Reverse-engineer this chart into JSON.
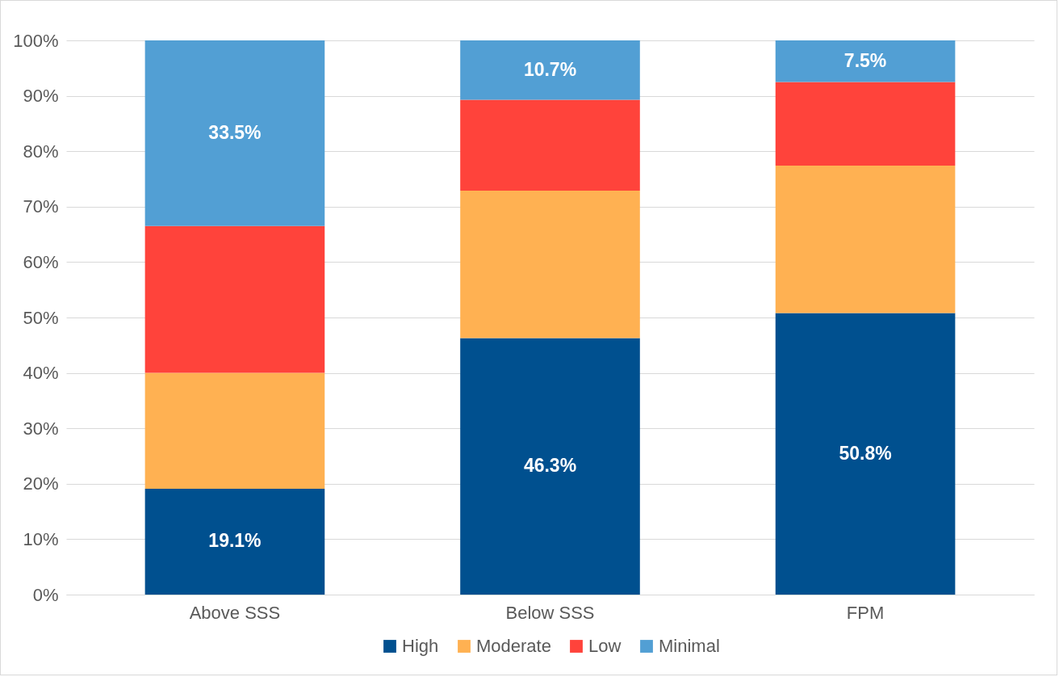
{
  "chart_data": {
    "type": "bar",
    "stacked": true,
    "categories": [
      "Above SSS",
      "Below SSS",
      "FPM"
    ],
    "series": [
      {
        "name": "High",
        "color": "#00508f",
        "values": [
          19.1,
          46.3,
          50.8
        ],
        "value_labels": [
          "19.1%",
          "46.3%",
          "50.8%"
        ]
      },
      {
        "name": "Moderate",
        "color": "#ffb152",
        "values": [
          20.9,
          26.6,
          26.6
        ],
        "value_labels": [
          null,
          null,
          null
        ]
      },
      {
        "name": "Low",
        "color": "#ff433b",
        "values": [
          26.5,
          16.4,
          15.1
        ],
        "value_labels": [
          null,
          null,
          null
        ]
      },
      {
        "name": "Minimal",
        "color": "#529fd4",
        "values": [
          33.5,
          10.7,
          7.5
        ],
        "value_labels": [
          "33.5%",
          "10.7%",
          "7.5%"
        ]
      }
    ],
    "ylim": [
      0,
      100
    ],
    "yticks": [
      {
        "value": 0,
        "label": "0%"
      },
      {
        "value": 10,
        "label": "10%"
      },
      {
        "value": 20,
        "label": "20%"
      },
      {
        "value": 30,
        "label": "30%"
      },
      {
        "value": 40,
        "label": "40%"
      },
      {
        "value": 50,
        "label": "50%"
      },
      {
        "value": 60,
        "label": "60%"
      },
      {
        "value": 70,
        "label": "70%"
      },
      {
        "value": 80,
        "label": "80%"
      },
      {
        "value": 90,
        "label": "90%"
      },
      {
        "value": 100,
        "label": "100%"
      }
    ],
    "grid": "y",
    "legend": "bottom"
  }
}
